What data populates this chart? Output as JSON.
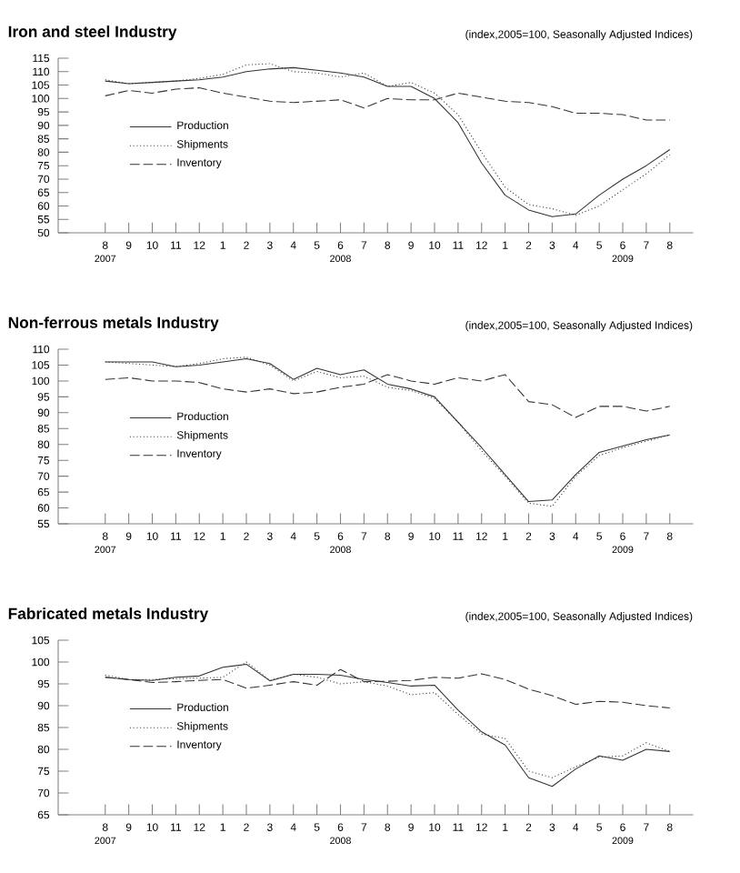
{
  "chart_data": [
    {
      "type": "line",
      "title": "Iron and steel Industry",
      "subtitle": "(index,2005=100, Seasonally Adjusted Indices)",
      "x": [
        "2007-08",
        "2007-09",
        "2007-10",
        "2007-11",
        "2007-12",
        "2008-01",
        "2008-02",
        "2008-03",
        "2008-04",
        "2008-05",
        "2008-06",
        "2008-07",
        "2008-08",
        "2008-09",
        "2008-10",
        "2008-11",
        "2008-12",
        "2009-01",
        "2009-02",
        "2009-03",
        "2009-04",
        "2009-05",
        "2009-06",
        "2009-07",
        "2009-08"
      ],
      "xlim": [
        "2007-06",
        "2009-09"
      ],
      "xticks": [
        {
          "value": "2007-08",
          "label": "8"
        },
        {
          "value": "2007-09",
          "label": "9"
        },
        {
          "value": "2007-10",
          "label": "10"
        },
        {
          "value": "2007-11",
          "label": "11"
        },
        {
          "value": "2007-12",
          "label": "12"
        },
        {
          "value": "2008-01",
          "label": "1"
        },
        {
          "value": "2008-02",
          "label": "2"
        },
        {
          "value": "2008-03",
          "label": "3"
        },
        {
          "value": "2008-04",
          "label": "4"
        },
        {
          "value": "2008-05",
          "label": "5"
        },
        {
          "value": "2008-06",
          "label": "6"
        },
        {
          "value": "2008-07",
          "label": "7"
        },
        {
          "value": "2008-08",
          "label": "8"
        },
        {
          "value": "2008-09",
          "label": "9"
        },
        {
          "value": "2008-10",
          "label": "10"
        },
        {
          "value": "2008-11",
          "label": "11"
        },
        {
          "value": "2008-12",
          "label": "12"
        },
        {
          "value": "2009-01",
          "label": "1"
        },
        {
          "value": "2009-02",
          "label": "2"
        },
        {
          "value": "2009-03",
          "label": "3"
        },
        {
          "value": "2009-04",
          "label": "4"
        },
        {
          "value": "2009-05",
          "label": "5"
        },
        {
          "value": "2009-06",
          "label": "6"
        },
        {
          "value": "2009-07",
          "label": "7"
        },
        {
          "value": "2009-08",
          "label": "8"
        }
      ],
      "ylim": [
        50,
        115
      ],
      "yticks": [
        50,
        55,
        60,
        65,
        70,
        75,
        80,
        85,
        90,
        95,
        100,
        105,
        110,
        115
      ],
      "legend": "left",
      "grid": false,
      "annotations": [
        "2007",
        "2008",
        "2009"
      ],
      "series": [
        {
          "name": "Production",
          "color": "#333333",
          "line_style": "solid",
          "values": [
            106.5,
            105.5,
            106,
            106.5,
            107,
            108,
            110,
            111,
            111.5,
            110.5,
            109.5,
            108,
            104.5,
            104.5,
            100,
            91,
            76,
            64,
            58.5,
            56,
            57,
            64,
            70,
            75,
            81
          ]
        },
        {
          "name": "Shipments",
          "color": "#333333",
          "line_style": "dotted",
          "values": [
            107,
            105.5,
            106,
            106.5,
            107.5,
            109,
            112.5,
            113,
            110,
            109.5,
            108,
            109.5,
            104.5,
            106,
            102,
            94,
            80,
            67,
            60.5,
            59,
            56.5,
            60,
            66,
            72,
            79
          ]
        },
        {
          "name": "Inventory",
          "color": "#333333",
          "line_style": "dashed",
          "values": [
            101,
            103,
            102,
            103.5,
            104,
            102,
            100.5,
            99,
            98.5,
            99,
            99.5,
            96.5,
            100,
            99.5,
            99.5,
            102,
            100.5,
            99,
            98.5,
            97,
            94.5,
            94.5,
            94,
            92,
            92
          ]
        }
      ]
    },
    {
      "type": "line",
      "title": "Non-ferrous metals Industry",
      "subtitle": "(index,2005=100, Seasonally Adjusted Indices)",
      "x": [
        "2007-08",
        "2007-09",
        "2007-10",
        "2007-11",
        "2007-12",
        "2008-01",
        "2008-02",
        "2008-03",
        "2008-04",
        "2008-05",
        "2008-06",
        "2008-07",
        "2008-08",
        "2008-09",
        "2008-10",
        "2008-11",
        "2008-12",
        "2009-01",
        "2009-02",
        "2009-03",
        "2009-04",
        "2009-05",
        "2009-06",
        "2009-07",
        "2009-08"
      ],
      "xlim": [
        "2007-06",
        "2009-09"
      ],
      "xticks": [
        {
          "value": "2007-08",
          "label": "8"
        },
        {
          "value": "2007-09",
          "label": "9"
        },
        {
          "value": "2007-10",
          "label": "10"
        },
        {
          "value": "2007-11",
          "label": "11"
        },
        {
          "value": "2007-12",
          "label": "12"
        },
        {
          "value": "2008-01",
          "label": "1"
        },
        {
          "value": "2008-02",
          "label": "2"
        },
        {
          "value": "2008-03",
          "label": "3"
        },
        {
          "value": "2008-04",
          "label": "4"
        },
        {
          "value": "2008-05",
          "label": "5"
        },
        {
          "value": "2008-06",
          "label": "6"
        },
        {
          "value": "2008-07",
          "label": "7"
        },
        {
          "value": "2008-08",
          "label": "8"
        },
        {
          "value": "2008-09",
          "label": "9"
        },
        {
          "value": "2008-10",
          "label": "10"
        },
        {
          "value": "2008-11",
          "label": "11"
        },
        {
          "value": "2008-12",
          "label": "12"
        },
        {
          "value": "2009-01",
          "label": "1"
        },
        {
          "value": "2009-02",
          "label": "2"
        },
        {
          "value": "2009-03",
          "label": "3"
        },
        {
          "value": "2009-04",
          "label": "4"
        },
        {
          "value": "2009-05",
          "label": "5"
        },
        {
          "value": "2009-06",
          "label": "6"
        },
        {
          "value": "2009-07",
          "label": "7"
        },
        {
          "value": "2009-08",
          "label": "8"
        }
      ],
      "ylim": [
        55,
        110
      ],
      "yticks": [
        55,
        60,
        65,
        70,
        75,
        80,
        85,
        90,
        95,
        100,
        105,
        110
      ],
      "legend": "left",
      "grid": false,
      "annotations": [
        "2007",
        "2008",
        "2009"
      ],
      "series": [
        {
          "name": "Production",
          "color": "#333333",
          "line_style": "solid",
          "values": [
            106,
            106,
            106,
            104.5,
            105,
            106,
            107,
            105.5,
            100.5,
            104,
            102,
            103.5,
            99,
            97.5,
            95,
            87,
            79,
            70.5,
            62,
            62.5,
            70.5,
            77.5,
            79.5,
            81.5,
            83
          ]
        },
        {
          "name": "Shipments",
          "color": "#333333",
          "line_style": "dotted",
          "values": [
            106,
            105.5,
            105,
            104.5,
            105.5,
            107,
            107.5,
            105,
            100,
            103,
            101,
            101.5,
            98,
            97,
            94.5,
            87,
            78,
            70,
            61.5,
            60.5,
            70,
            76.5,
            79,
            81,
            83
          ]
        },
        {
          "name": "Inventory",
          "color": "#333333",
          "line_style": "dashed",
          "values": [
            100.5,
            101,
            100,
            100,
            99.5,
            97.5,
            96.5,
            97.5,
            96,
            96.5,
            98,
            99,
            102,
            100,
            99,
            101,
            100,
            102,
            93.5,
            92.5,
            88.5,
            92,
            92,
            90.5,
            92
          ]
        }
      ]
    },
    {
      "type": "line",
      "title": "Fabricated metals Industry",
      "subtitle": "(index,2005=100, Seasonally Adjusted Indices)",
      "x": [
        "2007-08",
        "2007-09",
        "2007-10",
        "2007-11",
        "2007-12",
        "2008-01",
        "2008-02",
        "2008-03",
        "2008-04",
        "2008-05",
        "2008-06",
        "2008-07",
        "2008-08",
        "2008-09",
        "2008-10",
        "2008-11",
        "2008-12",
        "2009-01",
        "2009-02",
        "2009-03",
        "2009-04",
        "2009-05",
        "2009-06",
        "2009-07",
        "2009-08"
      ],
      "xlim": [
        "2007-06",
        "2009-09"
      ],
      "xticks": [
        {
          "value": "2007-08",
          "label": "8"
        },
        {
          "value": "2007-09",
          "label": "9"
        },
        {
          "value": "2007-10",
          "label": "10"
        },
        {
          "value": "2007-11",
          "label": "11"
        },
        {
          "value": "2007-12",
          "label": "12"
        },
        {
          "value": "2008-01",
          "label": "1"
        },
        {
          "value": "2008-02",
          "label": "2"
        },
        {
          "value": "2008-03",
          "label": "3"
        },
        {
          "value": "2008-04",
          "label": "4"
        },
        {
          "value": "2008-05",
          "label": "5"
        },
        {
          "value": "2008-06",
          "label": "6"
        },
        {
          "value": "2008-07",
          "label": "7"
        },
        {
          "value": "2008-08",
          "label": "8"
        },
        {
          "value": "2008-09",
          "label": "9"
        },
        {
          "value": "2008-10",
          "label": "10"
        },
        {
          "value": "2008-11",
          "label": "11"
        },
        {
          "value": "2008-12",
          "label": "12"
        },
        {
          "value": "2009-01",
          "label": "1"
        },
        {
          "value": "2009-02",
          "label": "2"
        },
        {
          "value": "2009-03",
          "label": "3"
        },
        {
          "value": "2009-04",
          "label": "4"
        },
        {
          "value": "2009-05",
          "label": "5"
        },
        {
          "value": "2009-06",
          "label": "6"
        },
        {
          "value": "2009-07",
          "label": "7"
        },
        {
          "value": "2009-08",
          "label": "8"
        }
      ],
      "ylim": [
        65,
        105
      ],
      "yticks": [
        65,
        70,
        75,
        80,
        85,
        90,
        95,
        100,
        105
      ],
      "legend": "left",
      "grid": false,
      "annotations": [
        "2007",
        "2008",
        "2009"
      ],
      "series": [
        {
          "name": "Production",
          "color": "#333333",
          "line_style": "solid",
          "values": [
            96.5,
            96,
            95.8,
            96.5,
            96.8,
            98.8,
            99.5,
            95.7,
            97.2,
            97.2,
            97,
            96,
            95.3,
            94.5,
            94.7,
            89,
            84,
            81,
            73.5,
            71.5,
            75.5,
            78.5,
            77.5,
            80,
            79.5
          ]
        },
        {
          "name": "Shipments",
          "color": "#333333",
          "line_style": "dotted",
          "values": [
            97,
            96,
            96,
            96.2,
            96.3,
            96.5,
            100,
            95.8,
            97.2,
            96.5,
            95,
            95.5,
            94.5,
            92.5,
            93,
            88,
            83.5,
            82.5,
            75,
            73.5,
            76,
            78.2,
            78.5,
            81.5,
            79.5
          ]
        },
        {
          "name": "Inventory",
          "color": "#333333",
          "line_style": "dashed",
          "values": [
            96.5,
            96,
            95.3,
            95.5,
            95.8,
            96,
            94,
            94.7,
            95.5,
            94.7,
            98.3,
            95.5,
            95.6,
            95.8,
            96.5,
            96.3,
            97.3,
            96,
            93.8,
            92.3,
            90.3,
            91,
            90.8,
            90,
            89.5
          ]
        }
      ]
    }
  ]
}
